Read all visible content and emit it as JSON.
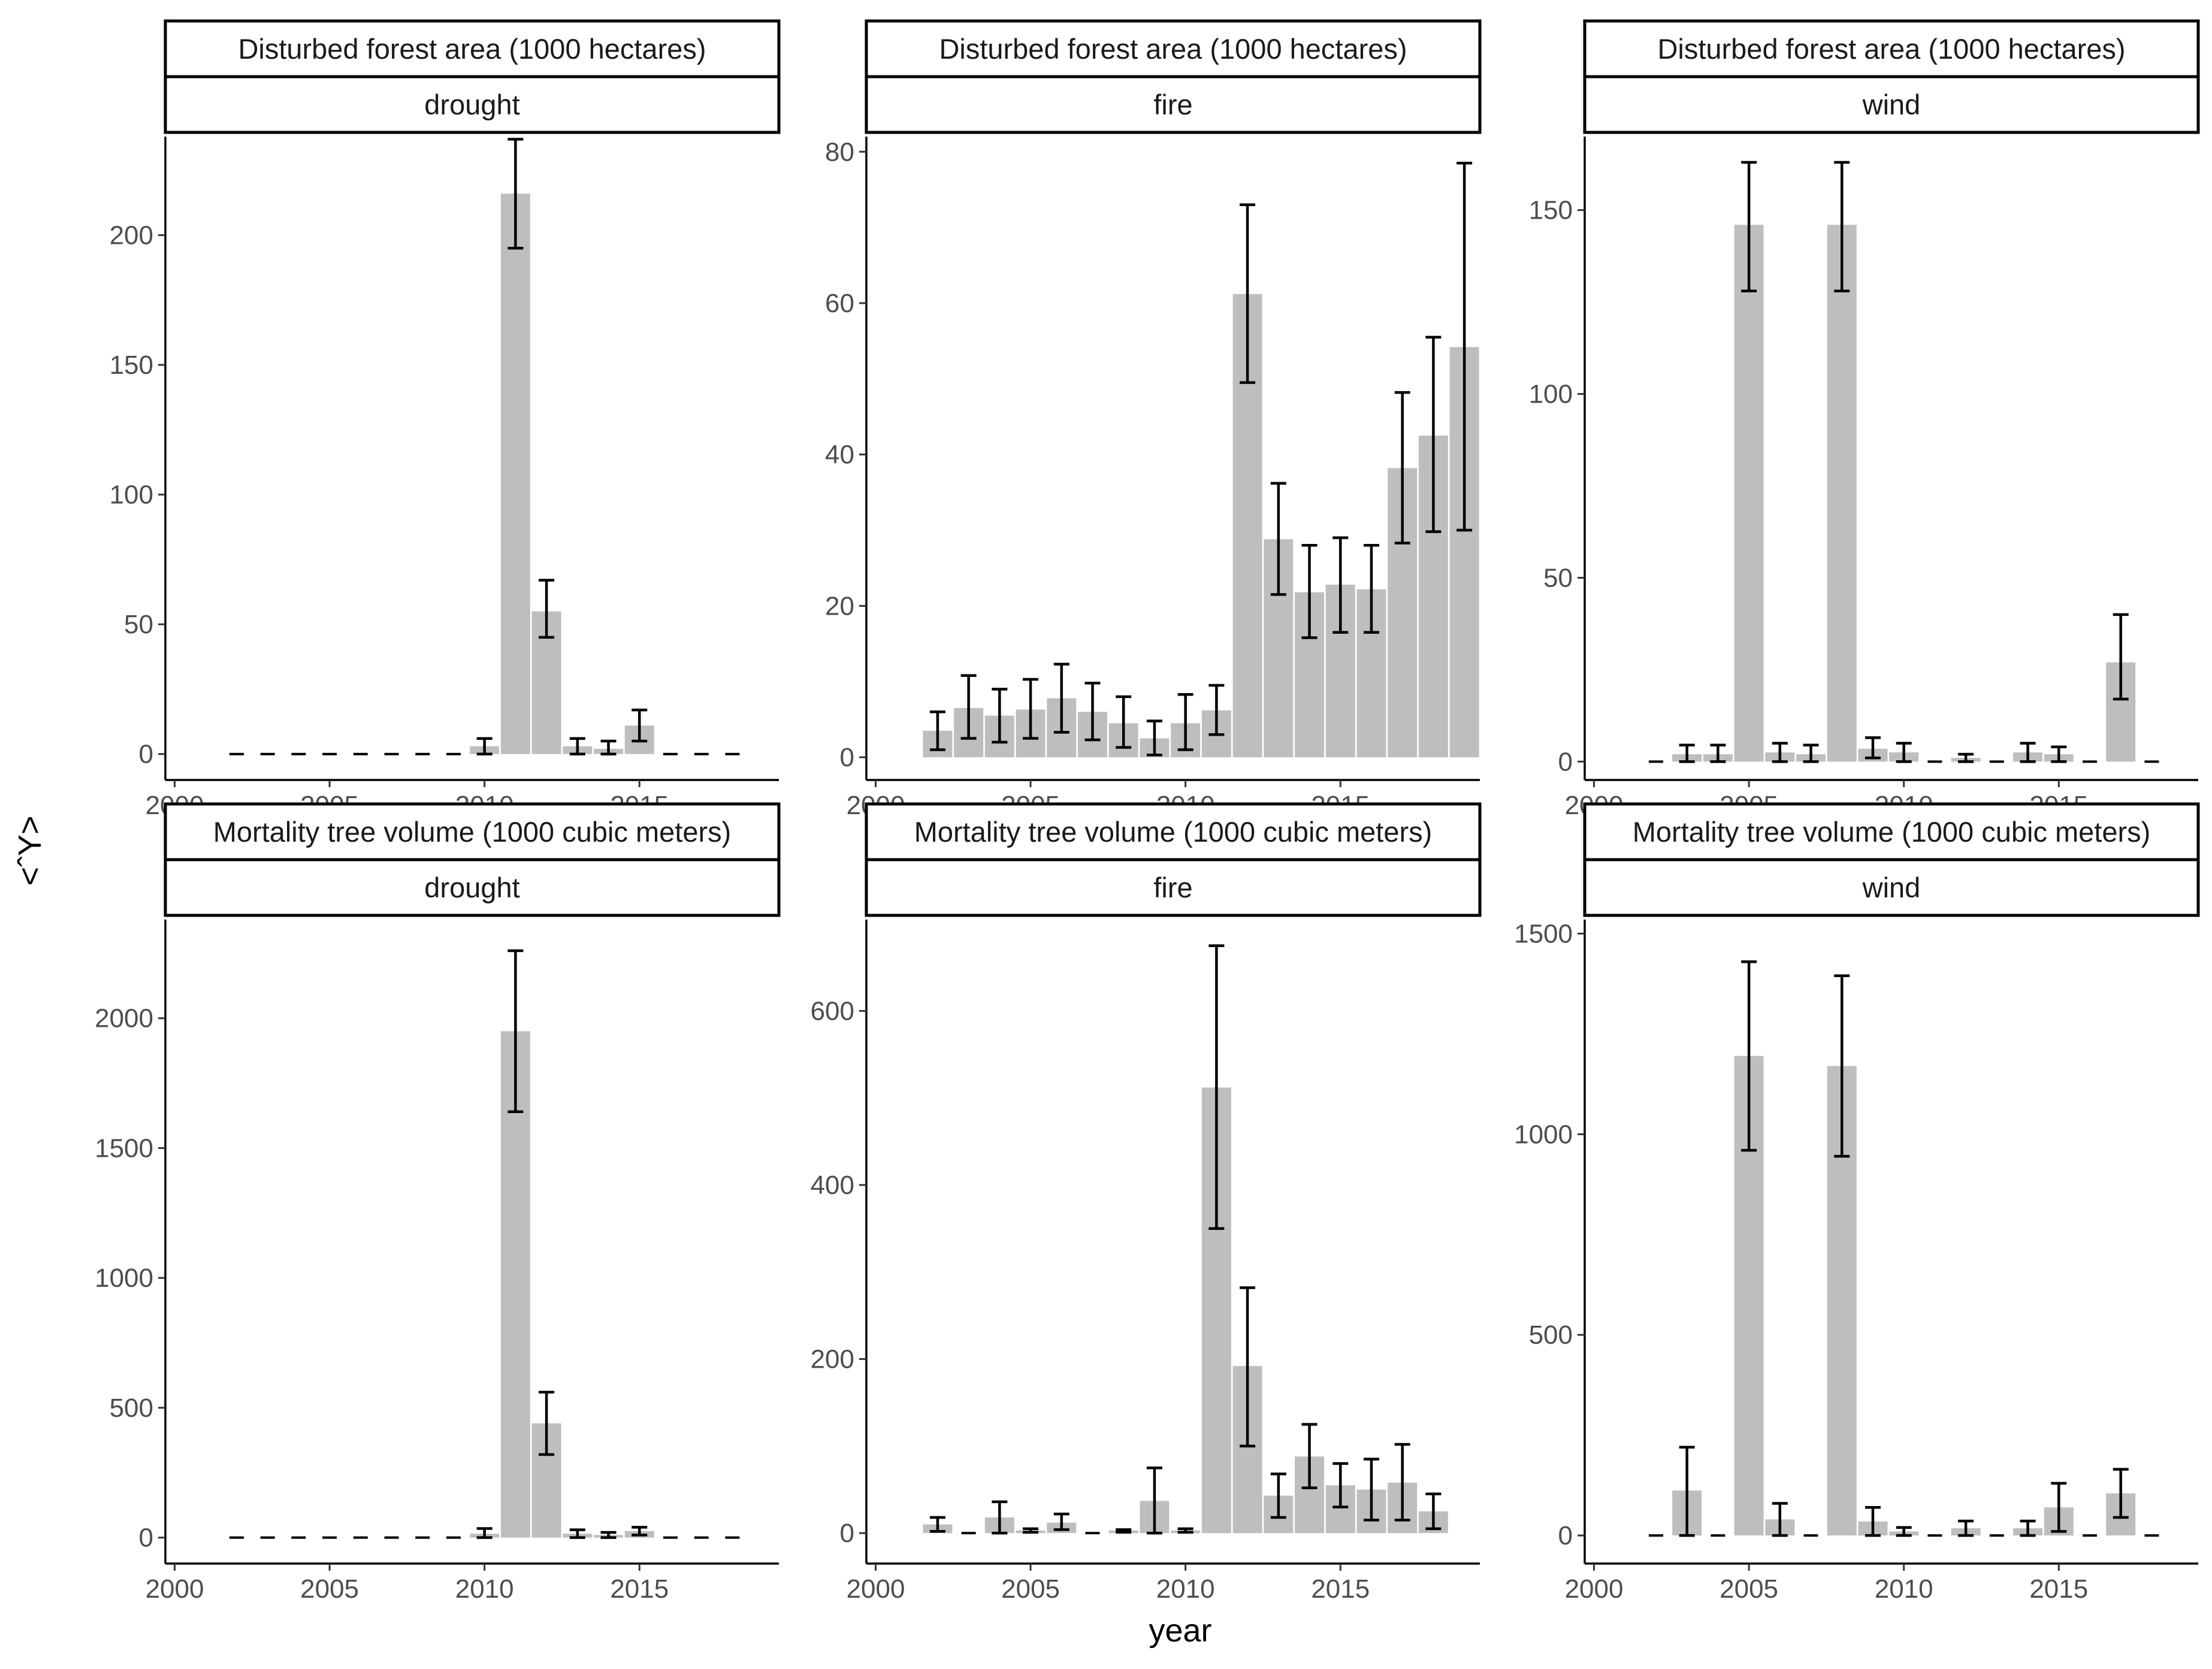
{
  "chart_data": {
    "type": "bar",
    "layout": "facet-grid",
    "xlabel": "year",
    "ylabel": "<ˆY>",
    "xlim": [
      1999.7,
      2019.5
    ],
    "xticks": [
      2000,
      2005,
      2010,
      2015
    ],
    "panels": [
      {
        "strip_top": "Disturbed forest area (1000 hectares)",
        "strip_bottom": "drought",
        "ylim": [
          -10,
          238
        ],
        "yticks": [
          0,
          50,
          100,
          150,
          200
        ],
        "bars": [
          {
            "year": 2010,
            "value": 3,
            "lo": 0,
            "hi": 6
          },
          {
            "year": 2011,
            "value": 216,
            "lo": 195,
            "hi": 237
          },
          {
            "year": 2012,
            "value": 55,
            "lo": 45,
            "hi": 67
          },
          {
            "year": 2013,
            "value": 3,
            "lo": 0,
            "hi": 6
          },
          {
            "year": 2014,
            "value": 2,
            "lo": 0,
            "hi": 5
          },
          {
            "year": 2015,
            "value": 11,
            "lo": 5,
            "hi": 17
          }
        ],
        "zero_years": [
          2002,
          2003,
          2004,
          2005,
          2006,
          2007,
          2008,
          2009,
          2016,
          2017,
          2018
        ]
      },
      {
        "strip_top": "Disturbed forest area (1000 hectares)",
        "strip_bottom": "fire",
        "ylim": [
          -3,
          82
        ],
        "yticks": [
          0,
          20,
          40,
          60,
          80
        ],
        "bars": [
          {
            "year": 2002,
            "value": 3.5,
            "lo": 1,
            "hi": 6
          },
          {
            "year": 2003,
            "value": 6.5,
            "lo": 2.5,
            "hi": 10.8
          },
          {
            "year": 2004,
            "value": 5.5,
            "lo": 2,
            "hi": 9
          },
          {
            "year": 2005,
            "value": 6.3,
            "lo": 2.5,
            "hi": 10.3
          },
          {
            "year": 2006,
            "value": 7.8,
            "lo": 3.3,
            "hi": 12.3
          },
          {
            "year": 2007,
            "value": 6,
            "lo": 2.3,
            "hi": 9.8
          },
          {
            "year": 2008,
            "value": 4.5,
            "lo": 1.3,
            "hi": 8
          },
          {
            "year": 2009,
            "value": 2.5,
            "lo": 0.3,
            "hi": 4.8
          },
          {
            "year": 2010,
            "value": 4.5,
            "lo": 1,
            "hi": 8.3
          },
          {
            "year": 2011,
            "value": 6.2,
            "lo": 3,
            "hi": 9.5
          },
          {
            "year": 2012,
            "value": 61.2,
            "lo": 49.5,
            "hi": 73
          },
          {
            "year": 2013,
            "value": 28.8,
            "lo": 21.5,
            "hi": 36.2
          },
          {
            "year": 2014,
            "value": 21.8,
            "lo": 15.8,
            "hi": 28
          },
          {
            "year": 2015,
            "value": 22.8,
            "lo": 16.5,
            "hi": 29
          },
          {
            "year": 2016,
            "value": 22.2,
            "lo": 16.5,
            "hi": 28
          },
          {
            "year": 2017,
            "value": 38.2,
            "lo": 28.3,
            "hi": 48.2
          },
          {
            "year": 2018,
            "value": 42.5,
            "lo": 29.8,
            "hi": 55.5
          },
          {
            "year": 2019,
            "value": 54.2,
            "lo": 30,
            "hi": 78.5
          }
        ],
        "zero_years": []
      },
      {
        "strip_top": "Disturbed forest area (1000 hectares)",
        "strip_bottom": "wind",
        "ylim": [
          -5,
          170
        ],
        "yticks": [
          0,
          50,
          100,
          150
        ],
        "bars": [
          {
            "year": 2003,
            "value": 2,
            "lo": 0,
            "hi": 4.5
          },
          {
            "year": 2004,
            "value": 2,
            "lo": 0,
            "hi": 4.5
          },
          {
            "year": 2005,
            "value": 146,
            "lo": 128,
            "hi": 163
          },
          {
            "year": 2006,
            "value": 2.5,
            "lo": 0,
            "hi": 5
          },
          {
            "year": 2007,
            "value": 2,
            "lo": 0,
            "hi": 4.5
          },
          {
            "year": 2008,
            "value": 146,
            "lo": 128,
            "hi": 163
          },
          {
            "year": 2009,
            "value": 3.5,
            "lo": 1,
            "hi": 6.5
          },
          {
            "year": 2010,
            "value": 2.5,
            "lo": 0,
            "hi": 5
          },
          {
            "year": 2012,
            "value": 1,
            "lo": 0,
            "hi": 2
          },
          {
            "year": 2014,
            "value": 2.5,
            "lo": 0,
            "hi": 5
          },
          {
            "year": 2015,
            "value": 2,
            "lo": 0,
            "hi": 4
          },
          {
            "year": 2017,
            "value": 27,
            "lo": 17,
            "hi": 40
          }
        ],
        "zero_years": [
          2002,
          2011,
          2013,
          2016,
          2018
        ]
      },
      {
        "strip_top": "Mortality tree volume (1000 cubic meters)",
        "strip_bottom": "drought",
        "ylim": [
          -100,
          2380
        ],
        "yticks": [
          0,
          500,
          1000,
          1500,
          2000
        ],
        "bars": [
          {
            "year": 2010,
            "value": 15,
            "lo": 0,
            "hi": 35
          },
          {
            "year": 2011,
            "value": 1950,
            "lo": 1640,
            "hi": 2260
          },
          {
            "year": 2012,
            "value": 440,
            "lo": 320,
            "hi": 560
          },
          {
            "year": 2013,
            "value": 15,
            "lo": 0,
            "hi": 30
          },
          {
            "year": 2014,
            "value": 10,
            "lo": 0,
            "hi": 20
          },
          {
            "year": 2015,
            "value": 25,
            "lo": 10,
            "hi": 40
          }
        ],
        "zero_years": [
          2002,
          2003,
          2004,
          2005,
          2006,
          2007,
          2008,
          2009,
          2016,
          2017,
          2018
        ]
      },
      {
        "strip_top": "Mortality tree volume (1000 cubic meters)",
        "strip_bottom": "fire",
        "ylim": [
          -35,
          705
        ],
        "yticks": [
          0,
          200,
          400,
          600
        ],
        "bars": [
          {
            "year": 2002,
            "value": 10,
            "lo": 2,
            "hi": 18
          },
          {
            "year": 2004,
            "value": 18,
            "lo": 0,
            "hi": 36
          },
          {
            "year": 2005,
            "value": 3,
            "lo": 1,
            "hi": 5
          },
          {
            "year": 2006,
            "value": 12,
            "lo": 4,
            "hi": 22
          },
          {
            "year": 2008,
            "value": 3,
            "lo": 1,
            "hi": 4
          },
          {
            "year": 2009,
            "value": 37,
            "lo": 0,
            "hi": 75
          },
          {
            "year": 2010,
            "value": 3,
            "lo": 1,
            "hi": 5
          },
          {
            "year": 2011,
            "value": 512,
            "lo": 350,
            "hi": 675
          },
          {
            "year": 2012,
            "value": 192,
            "lo": 100,
            "hi": 282
          },
          {
            "year": 2013,
            "value": 43,
            "lo": 18,
            "hi": 68
          },
          {
            "year": 2014,
            "value": 88,
            "lo": 52,
            "hi": 125
          },
          {
            "year": 2015,
            "value": 55,
            "lo": 30,
            "hi": 80
          },
          {
            "year": 2016,
            "value": 50,
            "lo": 15,
            "hi": 85
          },
          {
            "year": 2017,
            "value": 58,
            "lo": 15,
            "hi": 102
          },
          {
            "year": 2018,
            "value": 25,
            "lo": 5,
            "hi": 45
          }
        ],
        "zero_years": [
          2003,
          2007
        ]
      },
      {
        "strip_top": "Mortality tree volume (1000 cubic meters)",
        "strip_bottom": "wind",
        "ylim": [
          -70,
          1535
        ],
        "yticks": [
          0,
          500,
          1000,
          1500
        ],
        "bars": [
          {
            "year": 2003,
            "value": 112,
            "lo": 0,
            "hi": 220
          },
          {
            "year": 2005,
            "value": 1195,
            "lo": 960,
            "hi": 1430
          },
          {
            "year": 2006,
            "value": 40,
            "lo": 0,
            "hi": 80
          },
          {
            "year": 2008,
            "value": 1170,
            "lo": 945,
            "hi": 1395
          },
          {
            "year": 2009,
            "value": 35,
            "lo": 0,
            "hi": 70
          },
          {
            "year": 2010,
            "value": 10,
            "lo": 0,
            "hi": 20
          },
          {
            "year": 2012,
            "value": 18,
            "lo": 0,
            "hi": 36
          },
          {
            "year": 2014,
            "value": 18,
            "lo": 0,
            "hi": 36
          },
          {
            "year": 2015,
            "value": 70,
            "lo": 10,
            "hi": 130
          },
          {
            "year": 2017,
            "value": 105,
            "lo": 45,
            "hi": 165
          }
        ],
        "zero_years": [
          2002,
          2004,
          2007,
          2011,
          2013,
          2016,
          2018
        ]
      }
    ]
  }
}
